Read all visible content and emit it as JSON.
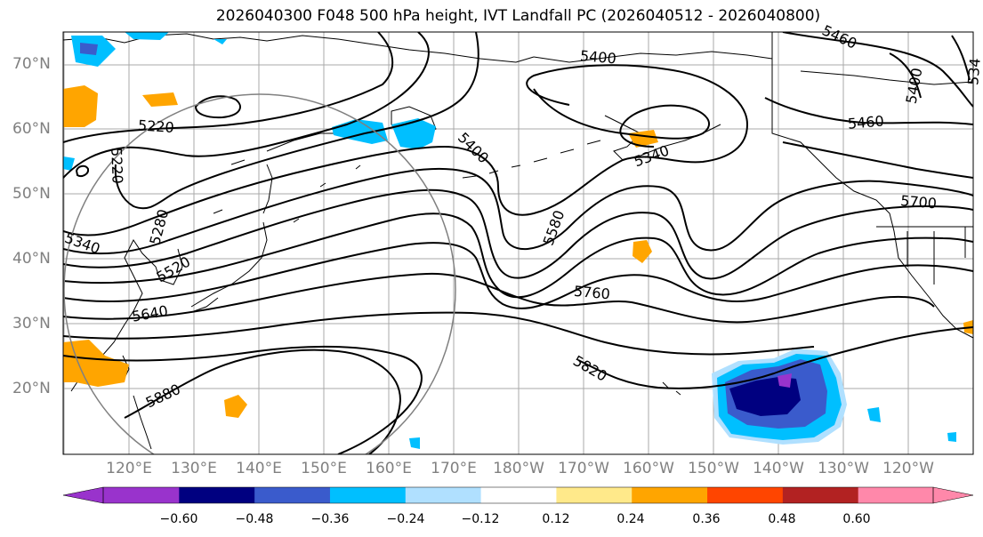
{
  "title": "2026040300 F048 500 hPa height, IVT Landfall PC (2026040512 - 2026040800)",
  "lat_labels": [
    "70°N",
    "60°N",
    "50°N",
    "40°N",
    "30°N",
    "20°N"
  ],
  "lon_labels": [
    "120°E",
    "130°E",
    "140°E",
    "150°E",
    "160°E",
    "170°E",
    "180°W",
    "170°W",
    "160°W",
    "150°W",
    "140°W",
    "130°W",
    "120°W"
  ],
  "contour_labels": [
    "5220",
    "5220",
    "5280",
    "5340",
    "5520",
    "5640",
    "5880",
    "5400",
    "5400",
    "5460",
    "5460",
    "5400",
    "5340",
    "5580",
    "5700",
    "5760",
    "5820",
    "534"
  ],
  "colorbar": {
    "ticks": [
      "−0.60",
      "−0.48",
      "−0.36",
      "−0.24",
      "−0.12",
      "0.12",
      "0.24",
      "0.36",
      "0.48",
      "0.60"
    ],
    "colors": [
      "#9933cc",
      "#000080",
      "#3a5bcc",
      "#00bfff",
      "#b0e0ff",
      "#ffffff",
      "#ffe98a",
      "#ffa500",
      "#ff4500",
      "#b22222",
      "#ff88aa"
    ]
  }
}
